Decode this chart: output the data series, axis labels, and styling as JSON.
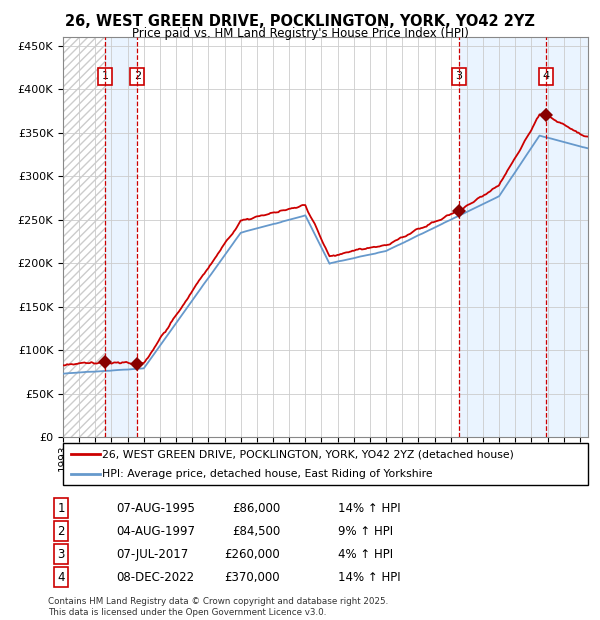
{
  "title": "26, WEST GREEN DRIVE, POCKLINGTON, YORK, YO42 2YZ",
  "subtitle": "Price paid vs. HM Land Registry's House Price Index (HPI)",
  "legend_line1": "26, WEST GREEN DRIVE, POCKLINGTON, YORK, YO42 2YZ (detached house)",
  "legend_line2": "HPI: Average price, detached house, East Riding of Yorkshire",
  "footer": "Contains HM Land Registry data © Crown copyright and database right 2025.\nThis data is licensed under the Open Government Licence v3.0.",
  "transactions": [
    {
      "num": 1,
      "date": "07-AUG-1995",
      "price": 86000,
      "pct": "14%",
      "dir": "↑"
    },
    {
      "num": 2,
      "date": "04-AUG-1997",
      "price": 84500,
      "pct": "9%",
      "dir": "↑"
    },
    {
      "num": 3,
      "date": "07-JUL-2017",
      "price": 260000,
      "pct": "4%",
      "dir": "↑"
    },
    {
      "num": 4,
      "date": "08-DEC-2022",
      "price": 370000,
      "pct": "14%",
      "dir": "↑"
    }
  ],
  "sale_dates_year": [
    1995.6,
    1997.6,
    2017.5,
    2022.92
  ],
  "sale_prices": [
    86000,
    84500,
    260000,
    370000
  ],
  "red_line_color": "#cc0000",
  "blue_line_color": "#6699cc",
  "marker_color": "#880000",
  "vline_color": "#cc0000",
  "bg_shade_color": "#ddeeff",
  "ylim": [
    0,
    460000
  ],
  "xlim_start": 1993.0,
  "xlim_end": 2025.5
}
